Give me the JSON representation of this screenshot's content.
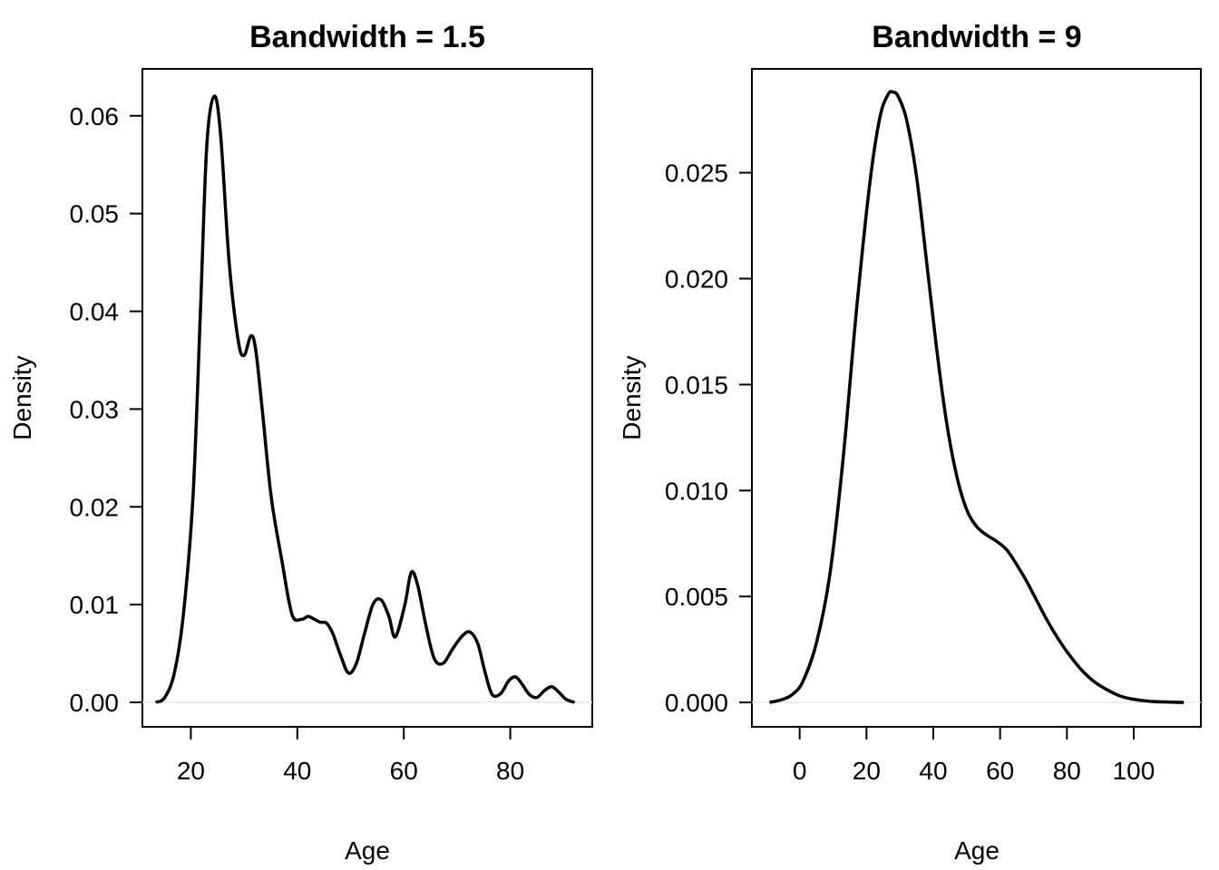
{
  "chart_data": [
    {
      "type": "line",
      "title": "Bandwidth = 1.5",
      "xlabel": "Age",
      "ylabel": "Density",
      "xlim": [
        10.9,
        95.4
      ],
      "ylim": [
        -0.0025,
        0.0648
      ],
      "xticks": [
        20,
        40,
        60,
        80
      ],
      "xtick_labels": [
        "20",
        "40",
        "60",
        "80"
      ],
      "yticks": [
        0,
        0.01,
        0.02,
        0.03,
        0.04,
        0.05,
        0.06
      ],
      "ytick_labels": [
        "0.00",
        "0.01",
        "0.02",
        "0.03",
        "0.04",
        "0.05",
        "0.06"
      ],
      "baseline": 0,
      "grid": false,
      "series": [
        {
          "color": "#000000",
          "x": [
            13.4,
            15.1,
            16.9,
            18.6,
            20.4,
            21.8,
            23.0,
            24.4,
            25.6,
            27.2,
            28.9,
            30.0,
            31.3,
            32.2,
            33.4,
            35.1,
            37.1,
            39.0,
            40.8,
            42.0,
            43.2,
            44.3,
            45.5,
            46.7,
            48.0,
            49.6,
            51.1,
            52.6,
            54.2,
            55.7,
            57.2,
            58.4,
            60.2,
            61.4,
            62.6,
            64.1,
            65.7,
            67.4,
            69.2,
            71.0,
            72.4,
            73.9,
            75.3,
            76.6,
            78.2,
            79.7,
            81.0,
            82.3,
            83.6,
            85.0,
            86.4,
            87.8,
            89.2,
            90.5,
            92.1
          ],
          "y": [
            0.0,
            0.0005,
            0.003,
            0.009,
            0.021,
            0.04,
            0.057,
            0.062,
            0.058,
            0.045,
            0.037,
            0.0355,
            0.0375,
            0.036,
            0.03,
            0.021,
            0.0145,
            0.009,
            0.0085,
            0.0088,
            0.0085,
            0.0082,
            0.0081,
            0.007,
            0.005,
            0.003,
            0.004,
            0.007,
            0.01,
            0.0105,
            0.0088,
            0.0067,
            0.01,
            0.0133,
            0.012,
            0.008,
            0.0045,
            0.004,
            0.0055,
            0.0068,
            0.0072,
            0.006,
            0.003,
            0.0008,
            0.0009,
            0.0022,
            0.0026,
            0.0018,
            0.0008,
            0.0005,
            0.0012,
            0.0016,
            0.001,
            0.0003,
            0.0
          ]
        }
      ]
    },
    {
      "type": "line",
      "title": "Bandwidth = 9",
      "xlabel": "Age",
      "ylabel": "Density",
      "xlim": [
        -14.3,
        120.1
      ],
      "ylim": [
        -0.00115,
        0.0299
      ],
      "xticks": [
        0,
        20,
        40,
        60,
        80,
        100
      ],
      "xtick_labels": [
        "0",
        "20",
        "40",
        "60",
        "80",
        "100"
      ],
      "yticks": [
        0,
        0.005,
        0.01,
        0.015,
        0.02,
        0.025
      ],
      "ytick_labels": [
        "0.000",
        "0.005",
        "0.010",
        "0.015",
        "0.020",
        "0.025"
      ],
      "baseline": 0,
      "grid": false,
      "series": [
        {
          "color": "#000000",
          "x": [
            -9.0,
            -5.0,
            -2.0,
            1.0,
            5.0,
            9.0,
            13.0,
            17.0,
            21.0,
            24.0,
            26.5,
            28.0,
            29.5,
            32.0,
            35.0,
            38.0,
            41.0,
            44.0,
            47.0,
            50.0,
            53.0,
            56.0,
            59.0,
            62.0,
            65.0,
            68.0,
            71.0,
            74.0,
            77.0,
            80.0,
            84.0,
            88.0,
            92.0,
            96.0,
            100.0,
            105.0,
            110.0,
            115.0
          ],
          "y": [
            0.0,
            0.00015,
            0.0004,
            0.001,
            0.0028,
            0.006,
            0.0115,
            0.0185,
            0.0245,
            0.0276,
            0.0287,
            0.0288,
            0.0286,
            0.0275,
            0.0248,
            0.0208,
            0.0167,
            0.0132,
            0.0107,
            0.0091,
            0.0083,
            0.0079,
            0.0076,
            0.0072,
            0.0065,
            0.0057,
            0.0048,
            0.0039,
            0.0031,
            0.0024,
            0.0016,
            0.001,
            0.0006,
            0.0003,
            0.00015,
            5e-05,
            2e-05,
            0.0
          ]
        }
      ]
    }
  ]
}
